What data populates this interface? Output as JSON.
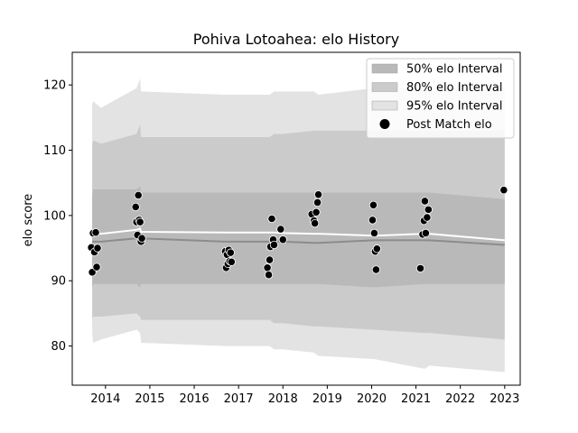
{
  "chart_data": {
    "type": "line",
    "title": "Pohiva Lotoahea: elo History",
    "xlabel": "",
    "ylabel": "elo score",
    "xlim": [
      2013.25,
      2023.35
    ],
    "ylim": [
      74,
      125
    ],
    "x_ticks": [
      2014,
      2015,
      2016,
      2017,
      2018,
      2019,
      2020,
      2021,
      2022,
      2023
    ],
    "y_ticks": [
      80,
      90,
      100,
      110,
      120
    ],
    "grid": false,
    "legend_position": "top-right",
    "colors": {
      "band95": "#e3e3e3",
      "band80": "#cbcbcb",
      "band50": "#b9b9b9",
      "median": "#8c8c8c",
      "mean": "#ffffff",
      "points": "#000000"
    },
    "legend": [
      {
        "label": "50% elo Interval",
        "kind": "band50"
      },
      {
        "label": "80% elo Interval",
        "kind": "band80"
      },
      {
        "label": "95% elo Interval",
        "kind": "band95"
      },
      {
        "label": "Post Match elo",
        "kind": "point"
      }
    ],
    "series": [
      {
        "kind": "band95",
        "x": [
          2013.7,
          2013.72,
          2013.9,
          2014.7,
          2014.78,
          2014.8,
          2016.7,
          2017.0,
          2017.7,
          2017.8,
          2018.0,
          2018.7,
          2018.8,
          2020.05,
          2021.2,
          2021.3,
          2023.0
        ],
        "upper": [
          117.0,
          117.5,
          116.5,
          119.5,
          121.0,
          119.0,
          118.5,
          118.5,
          118.5,
          119.0,
          119.0,
          119.0,
          118.5,
          119.5,
          119.5,
          119.5,
          119.5
        ],
        "lower": [
          82.0,
          80.5,
          81.0,
          82.5,
          82.0,
          80.5,
          80.0,
          80.0,
          80.0,
          79.5,
          79.5,
          79.0,
          78.5,
          78.0,
          76.5,
          77.0,
          76.0
        ]
      },
      {
        "kind": "band80",
        "x": [
          2013.7,
          2013.72,
          2013.9,
          2014.7,
          2014.78,
          2014.8,
          2016.7,
          2017.0,
          2017.7,
          2017.8,
          2018.0,
          2018.7,
          2018.8,
          2020.05,
          2021.2,
          2021.3,
          2023.0
        ],
        "upper": [
          111.0,
          111.5,
          111.0,
          112.5,
          114.0,
          112.0,
          112.0,
          112.0,
          112.0,
          112.5,
          112.5,
          113.0,
          113.0,
          113.0,
          113.0,
          113.0,
          113.0
        ],
        "lower": [
          84.0,
          84.5,
          84.5,
          85.0,
          84.5,
          84.0,
          84.0,
          84.0,
          84.0,
          83.5,
          83.5,
          83.0,
          83.0,
          82.5,
          82.0,
          82.0,
          81.0
        ]
      },
      {
        "kind": "band50",
        "x": [
          2013.7,
          2013.72,
          2013.9,
          2014.7,
          2014.78,
          2014.8,
          2016.7,
          2017.0,
          2017.7,
          2017.8,
          2018.0,
          2018.7,
          2018.8,
          2020.05,
          2021.2,
          2021.3,
          2023.0
        ],
        "upper": [
          103.0,
          104.0,
          104.0,
          104.0,
          104.5,
          103.5,
          103.5,
          103.5,
          103.5,
          103.5,
          103.5,
          103.5,
          103.5,
          103.5,
          103.5,
          103.5,
          102.5
        ],
        "lower": [
          89.0,
          89.5,
          89.5,
          89.5,
          89.0,
          89.5,
          89.5,
          89.5,
          89.5,
          89.5,
          89.5,
          89.5,
          89.5,
          89.0,
          89.5,
          89.5,
          89.5
        ]
      },
      {
        "kind": "median",
        "x": [
          2013.7,
          2013.72,
          2013.9,
          2014.7,
          2014.78,
          2014.8,
          2016.7,
          2017.0,
          2017.7,
          2017.8,
          2018.0,
          2018.7,
          2018.8,
          2020.05,
          2021.2,
          2021.3,
          2023.0
        ],
        "y": [
          96.0,
          96.0,
          96.0,
          96.5,
          96.5,
          96.5,
          96.0,
          96.0,
          96.0,
          96.0,
          96.0,
          95.8,
          95.8,
          96.2,
          96.2,
          96.2,
          95.5
        ]
      },
      {
        "kind": "mean",
        "x": [
          2013.7,
          2013.72,
          2013.9,
          2014.7,
          2014.78,
          2014.8,
          2016.7,
          2017.0,
          2017.7,
          2017.8,
          2018.0,
          2018.7,
          2018.8,
          2020.05,
          2021.2,
          2021.3,
          2023.0
        ],
        "y": [
          97.0,
          97.3,
          97.2,
          97.8,
          98.0,
          97.5,
          97.4,
          97.4,
          97.4,
          97.4,
          97.3,
          97.2,
          97.2,
          96.9,
          97.2,
          97.2,
          96.2
        ]
      },
      {
        "kind": "point",
        "name": "Post Match elo",
        "x": [
          2013.68,
          2013.7,
          2013.72,
          2013.75,
          2013.78,
          2013.8,
          2013.82,
          2014.68,
          2014.7,
          2014.72,
          2014.74,
          2014.76,
          2014.78,
          2014.8,
          2014.82,
          2016.7,
          2016.72,
          2016.74,
          2016.76,
          2016.78,
          2016.8,
          2016.82,
          2016.84,
          2017.65,
          2017.68,
          2017.7,
          2017.72,
          2017.75,
          2017.78,
          2017.8,
          2017.95,
          2018.0,
          2018.65,
          2018.7,
          2018.72,
          2018.75,
          2018.78,
          2018.8,
          2020.02,
          2020.04,
          2020.06,
          2020.08,
          2020.1,
          2020.12,
          2021.1,
          2021.15,
          2021.18,
          2021.2,
          2021.22,
          2021.25,
          2021.28,
          2022.98
        ],
        "y": [
          95.1,
          91.3,
          97.3,
          94.4,
          97.4,
          92.1,
          95.0,
          101.3,
          99.0,
          97.0,
          103.1,
          99.3,
          99.0,
          96.0,
          96.5,
          94.5,
          92.0,
          94.0,
          92.6,
          94.7,
          93.0,
          94.3,
          92.9,
          92.0,
          90.9,
          93.2,
          95.2,
          99.5,
          96.3,
          95.5,
          97.9,
          96.3,
          100.2,
          99.2,
          98.8,
          100.5,
          102.0,
          103.2,
          99.3,
          101.6,
          97.3,
          94.5,
          91.7,
          94.9,
          91.9,
          97.1,
          99.2,
          102.2,
          97.3,
          99.7,
          100.9,
          103.9
        ]
      }
    ]
  }
}
